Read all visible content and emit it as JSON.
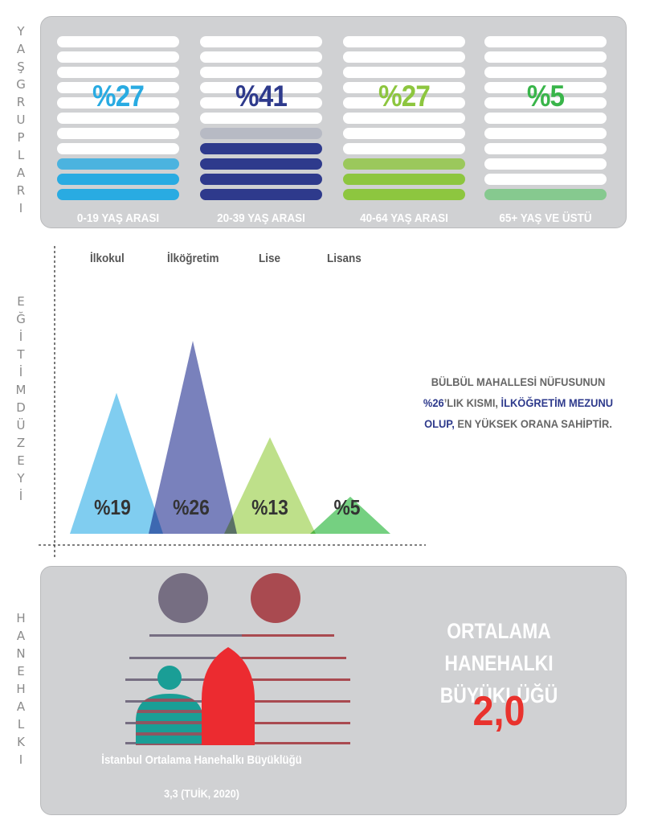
{
  "side_labels": {
    "age": [
      "Y",
      "A",
      "Ş",
      "G",
      "R",
      "U",
      "P",
      "L",
      "A",
      "R",
      "I"
    ],
    "education": [
      "E",
      "Ğ",
      "İ",
      "T",
      "İ",
      "M",
      "D",
      "Ü",
      "Z",
      "E",
      "Y",
      "İ"
    ],
    "household": [
      "H",
      "A",
      "N",
      "E",
      "H",
      "A",
      "L",
      "K",
      "I"
    ]
  },
  "age_groups": [
    {
      "percent_label": "%27",
      "label": "0-19 YAŞ ARASI",
      "value": 27,
      "color": "#29abe2"
    },
    {
      "percent_label": "%41",
      "label": "20-39 YAŞ ARASI",
      "value": 41,
      "color": "#2e3a8c"
    },
    {
      "percent_label": "%27",
      "label": "40-64 YAŞ ARASI",
      "value": 27,
      "color": "#8dc63f"
    },
    {
      "percent_label": "%5",
      "label": "65+ YAŞ VE ÜSTÜ",
      "value": 5,
      "color": "#39b54a"
    }
  ],
  "chart_data": {
    "type": "area",
    "categories": [
      "İlkokul",
      "İlköğretim",
      "Lise",
      "Lisans"
    ],
    "values": [
      19,
      26,
      13,
      5
    ],
    "value_labels": [
      "%19",
      "%26",
      "%13",
      "%5"
    ],
    "colors": [
      "#6ec6ee",
      "#6670b3",
      "#b5dc7a",
      "#62c96f"
    ]
  },
  "education_note": {
    "line1": "BÜLBÜL MAHALLESİ NÜFUSUNUN",
    "highlight_pct": "%26",
    "part2": "’LIK KISMI, ",
    "highlight_edu": "İLKÖĞRETİM MEZUNU",
    "highlight_olup": "OLUP,",
    "line3": " EN YÜKSEK ORANA SAHİPTİR."
  },
  "household": {
    "title_line1": "ORTALAMA HANEHALKI",
    "title_line2": "BÜYÜKLÜĞÜ",
    "value": "2,0",
    "istanbul_label": "İstanbul Ortalama Hanehalkı Büyüklüğü",
    "istanbul_value": "3,3 (TUİK, 2020)"
  }
}
